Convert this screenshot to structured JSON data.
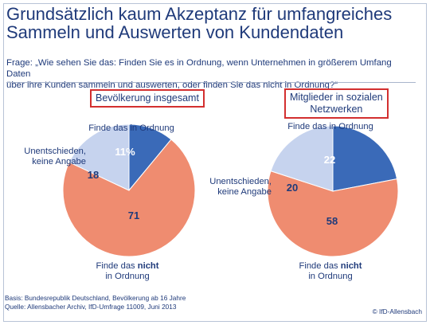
{
  "title_line1": "Grundsätzlich kaum Akzeptanz für umfangreiches",
  "title_line2": "Sammeln und Auswerten von Kundendaten",
  "question_line1": "Frage: „Wie sehen Sie das: Finden Sie es in Ordnung, wenn Unternehmen in größerem Umfang Daten",
  "question_line2": "über ihre Kunden sammeln und auswerten, oder finden Sie das nicht in Ordnung?“",
  "colors": {
    "ordnung": "#3a6ab8",
    "unentschieden": "#c6d3ee",
    "nicht": "#ef8c70",
    "text": "#1f3a7a",
    "box": "#d32f2f"
  },
  "chart_data": [
    {
      "type": "pie",
      "title": "Bevölkerung insgesamt",
      "slices": [
        {
          "label": "Finde das in Ordnung",
          "value": 11,
          "display": "11%"
        },
        {
          "label": "Finde das nicht in Ordnung",
          "value": 71,
          "display": "71"
        },
        {
          "label": "Unentschieden, keine Angabe",
          "value": 18,
          "display": "18"
        }
      ]
    },
    {
      "type": "pie",
      "title_line1": "Mitglieder in sozialen",
      "title_line2": "Netzwerken",
      "slices": [
        {
          "label": "Finde das in Ordnung",
          "value": 22,
          "display": "22"
        },
        {
          "label": "Finde das nicht in Ordnung",
          "value": 58,
          "display": "58"
        },
        {
          "label": "Unentschieden, keine Angabe",
          "value": 20,
          "display": "20"
        }
      ]
    }
  ],
  "labels": {
    "ordnung": "Finde das in Ordnung",
    "unentschieden_line1": "Unentschieden,",
    "unentschieden_line2": "keine Angabe",
    "nicht_pre": "Finde das ",
    "nicht_bold": "nicht",
    "nicht_line2": "in Ordnung"
  },
  "footer": {
    "basis": "Basis: Bundesrepublik Deutschland, Bevölkerung ab 16 Jahre",
    "quelle": "Quelle: Allensbacher Archiv, IfD-Umfrage 11009, Juni 2013",
    "copyright": "© IfD-Allensbach"
  }
}
